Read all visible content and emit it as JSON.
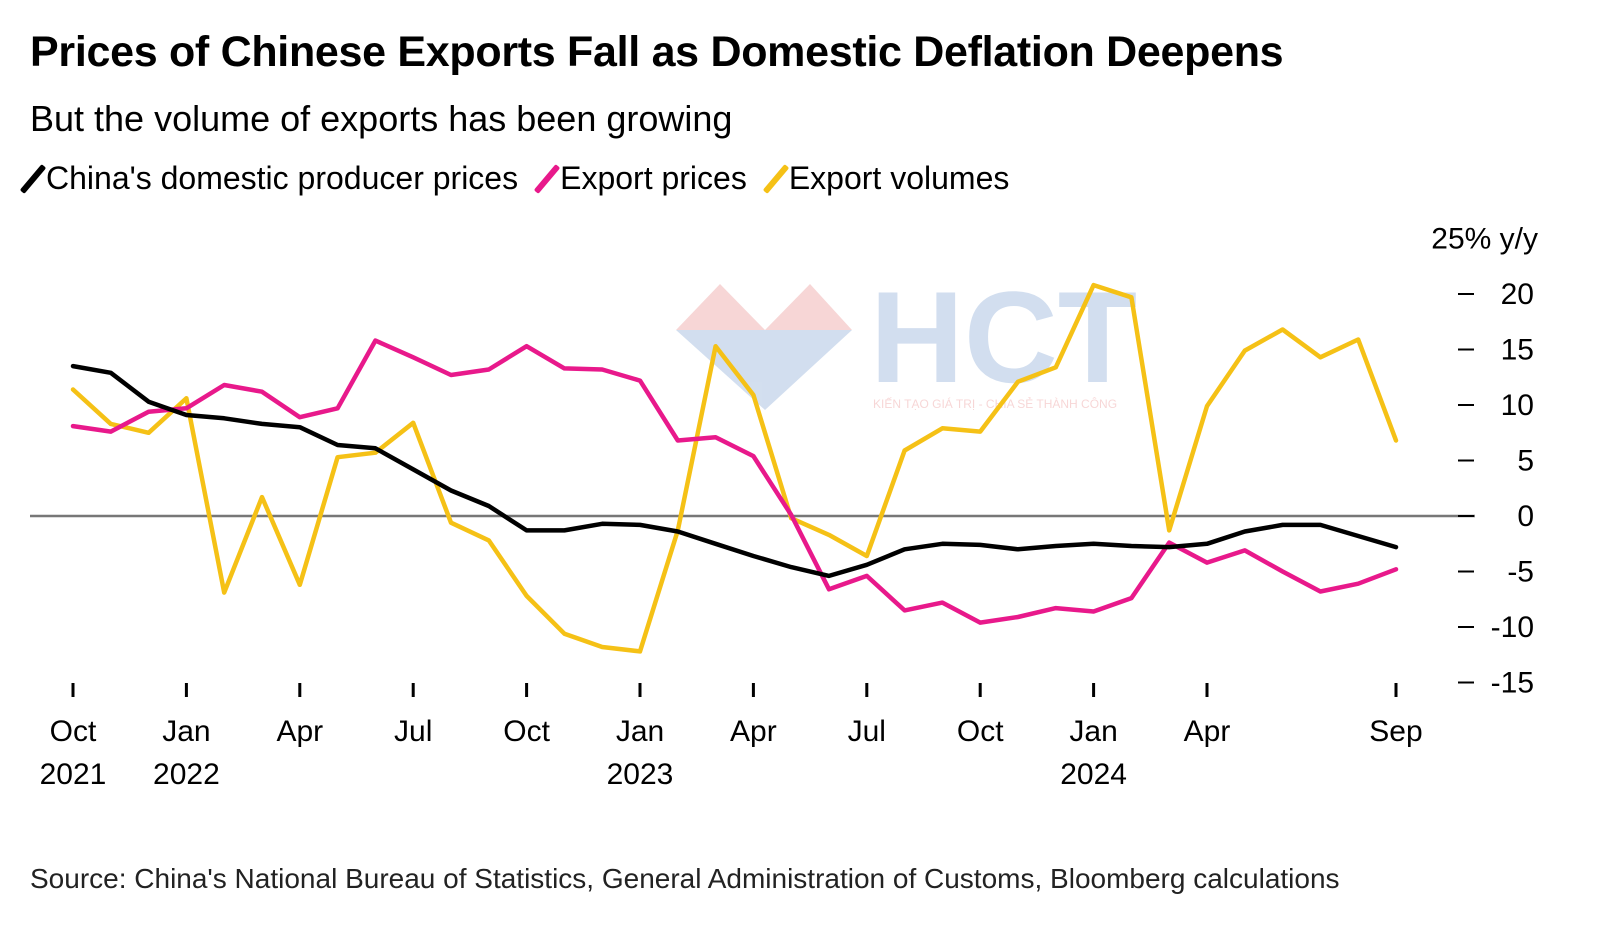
{
  "title": "Prices of Chinese Exports Fall as Domestic Deflation Deepens",
  "subtitle": "But the volume of exports has been growing",
  "source": "Source: China's National Bureau of Statistics, General Administration of Customs, Bloomberg calculations",
  "watermark": {
    "logo": "HCT",
    "tagline": "KIẾN TẠO GIÁ TRỊ - CHIA SẺ THÀNH CÔNG"
  },
  "chart_data": {
    "type": "line",
    "title": "Prices of Chinese Exports Fall as Domestic Deflation Deepens",
    "ylabel": "% y/y",
    "ylim": [
      -15,
      25
    ],
    "yticks": [
      -15,
      -10,
      -5,
      0,
      5,
      10,
      15,
      20,
      25
    ],
    "ytick_labels": [
      "-15",
      "-10",
      "-5",
      "0",
      "5",
      "10",
      "15",
      "20",
      "25% y/y"
    ],
    "legend_position": "top-left",
    "x": [
      "2021-10",
      "2021-11",
      "2021-12",
      "2022-01",
      "2022-02",
      "2022-03",
      "2022-04",
      "2022-05",
      "2022-06",
      "2022-07",
      "2022-08",
      "2022-09",
      "2022-10",
      "2022-11",
      "2022-12",
      "2023-01",
      "2023-02",
      "2023-03",
      "2023-04",
      "2023-05",
      "2023-06",
      "2023-07",
      "2023-08",
      "2023-09",
      "2023-10",
      "2023-11",
      "2023-12",
      "2024-01",
      "2024-02",
      "2024-03",
      "2024-04",
      "2024-05",
      "2024-06",
      "2024-07",
      "2024-08",
      "2024-09"
    ],
    "xticks": [
      {
        "index": 0,
        "line1": "Oct",
        "line2": "2021"
      },
      {
        "index": 3,
        "line1": "Jan",
        "line2": "2022"
      },
      {
        "index": 6,
        "line1": "Apr",
        "line2": ""
      },
      {
        "index": 9,
        "line1": "Jul",
        "line2": ""
      },
      {
        "index": 12,
        "line1": "Oct",
        "line2": ""
      },
      {
        "index": 15,
        "line1": "Jan",
        "line2": "2023"
      },
      {
        "index": 18,
        "line1": "Apr",
        "line2": ""
      },
      {
        "index": 21,
        "line1": "Jul",
        "line2": ""
      },
      {
        "index": 24,
        "line1": "Oct",
        "line2": ""
      },
      {
        "index": 27,
        "line1": "Jan",
        "line2": "2024"
      },
      {
        "index": 30,
        "line1": "Apr",
        "line2": ""
      },
      {
        "index": 35,
        "line1": "Sep",
        "line2": ""
      }
    ],
    "series": [
      {
        "name": "China's domestic producer prices",
        "color": "#000000",
        "values": [
          13.5,
          12.9,
          10.3,
          9.1,
          8.8,
          8.3,
          8.0,
          6.4,
          6.1,
          4.2,
          2.3,
          0.9,
          -1.3,
          -1.3,
          -0.7,
          -0.8,
          -1.4,
          -2.5,
          -3.6,
          -4.6,
          -5.4,
          -4.4,
          -3.0,
          -2.5,
          -2.6,
          -3.0,
          -2.7,
          -2.5,
          -2.7,
          -2.8,
          -2.5,
          -1.4,
          -0.8,
          -0.8,
          -1.8,
          -2.8
        ]
      },
      {
        "name": "Export prices",
        "color": "#e8198b",
        "values": [
          8.1,
          7.6,
          9.4,
          9.7,
          11.8,
          11.2,
          8.9,
          9.7,
          15.8,
          14.3,
          12.7,
          13.2,
          15.3,
          13.3,
          13.2,
          12.2,
          6.8,
          7.1,
          5.4,
          0.1,
          -6.6,
          -5.4,
          -8.5,
          -7.8,
          -9.6,
          -9.1,
          -8.3,
          -8.6,
          -7.4,
          -2.4,
          -4.2,
          -3.1,
          -5.0,
          -6.8,
          -6.1,
          -4.8
        ]
      },
      {
        "name": "Export volumes",
        "color": "#f5c116",
        "values": [
          11.4,
          8.3,
          7.5,
          10.6,
          -6.9,
          1.7,
          -6.2,
          5.3,
          5.7,
          8.4,
          -0.6,
          -2.2,
          -7.2,
          -10.6,
          -11.8,
          -12.2,
          -1.3,
          15.3,
          10.9,
          -0.2,
          -1.7,
          -3.6,
          5.9,
          7.9,
          7.6,
          12.1,
          13.4,
          20.8,
          19.7,
          -1.3,
          9.9,
          14.9,
          16.8,
          14.3,
          15.9,
          6.8
        ]
      }
    ]
  }
}
